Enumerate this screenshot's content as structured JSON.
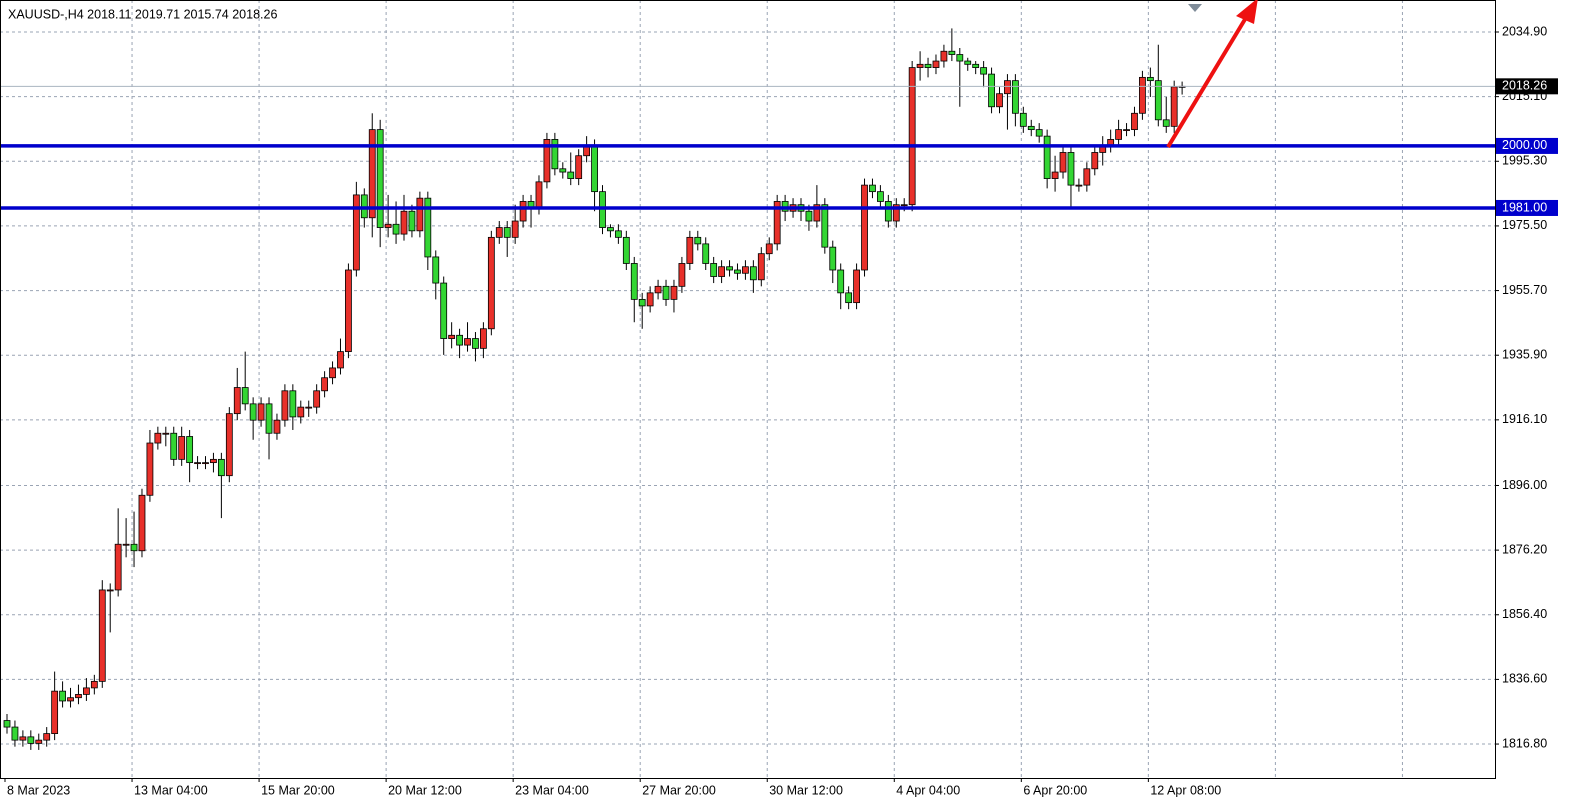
{
  "chart_data": {
    "type": "candlestick",
    "title": "XAUUSD-,H4  2018.11 2019.71 2015.74 2018.26",
    "categories": [
      "8 Mar 2023",
      null,
      null,
      null,
      null,
      null,
      null,
      null,
      null,
      null,
      null,
      null,
      null,
      null,
      null,
      null,
      "13 Mar 04:00",
      null,
      null,
      null,
      null,
      null,
      null,
      null,
      null,
      null,
      null,
      null,
      null,
      null,
      null,
      null,
      "15 Mar 20:00",
      null,
      null,
      null,
      null,
      null,
      null,
      null,
      null,
      null,
      null,
      null,
      null,
      null,
      null,
      null,
      "20 Mar 12:00",
      null,
      null,
      null,
      null,
      null,
      null,
      null,
      null,
      null,
      null,
      null,
      null,
      null,
      null,
      null,
      "23 Mar 04:00",
      null,
      null,
      null,
      null,
      null,
      null,
      null,
      null,
      null,
      null,
      null,
      null,
      null,
      null,
      null,
      "27 Mar 20:00",
      null,
      null,
      null,
      null,
      null,
      null,
      null,
      null,
      null,
      null,
      null,
      null,
      null,
      null,
      null,
      "30 Mar 12:00",
      null,
      null,
      null,
      null,
      null,
      null,
      null,
      null,
      null,
      null,
      null,
      null,
      null,
      null,
      null,
      "4 Apr 04:00",
      null,
      null,
      null,
      null,
      null,
      null,
      null,
      null,
      null,
      null,
      null,
      null,
      null,
      null,
      null,
      "6 Apr 20:00",
      null,
      null,
      null,
      null,
      null,
      null,
      null,
      null,
      null,
      null,
      null,
      null,
      null,
      null,
      null,
      "12 Apr 08:00",
      null,
      null,
      null,
      null
    ],
    "open": [
      1824,
      1822,
      1818,
      1819,
      1817,
      1818,
      1820,
      1833,
      1830,
      1831,
      1832,
      1834,
      1836,
      1864,
      1864,
      1878,
      1878,
      1876,
      1893,
      1909,
      1912,
      1912,
      1904,
      1911,
      1903,
      1903,
      1903,
      1904,
      1899,
      1918,
      1926,
      1921,
      1916,
      1921,
      1912,
      1916,
      1925,
      1917,
      1920,
      1920,
      1925,
      1929,
      1932,
      1937,
      1962,
      1985,
      1978,
      2005,
      1975,
      1976,
      1973,
      1980,
      1974,
      1984,
      1966,
      1958,
      1941,
      1942,
      1939,
      1941,
      1938,
      1944,
      1972,
      1975,
      1972,
      1977,
      1983,
      1981,
      1989,
      2002,
      1993,
      1992,
      1990,
      1997,
      2000,
      1986,
      1975,
      1974,
      1972,
      1964,
      1953,
      1951,
      1955,
      1957,
      1953,
      1957,
      1964,
      1972,
      1970,
      1964,
      1960,
      1963,
      1962,
      1961,
      1963,
      1959,
      1967,
      1970,
      1983,
      1980,
      1982,
      1980,
      1977,
      1982,
      1969,
      1962,
      1955,
      1952,
      1962,
      1988,
      1986,
      1983,
      1977,
      1982,
      1982,
      2024,
      2025,
      2024,
      2026,
      2029,
      2028,
      2026,
      2025,
      2024,
      2022,
      2012,
      2016,
      2020,
      2010,
      2006,
      2005,
      2003,
      1990,
      1992,
      1998,
      1988,
      1988,
      1993,
      1998,
      2000,
      2002,
      2005,
      2005,
      2010,
      2021,
      2020,
      2008,
      2006,
      2018.11
    ],
    "high": [
      1826,
      1824,
      1821,
      1821,
      1820,
      1822,
      1839,
      1836,
      1834,
      1835,
      1837,
      1838,
      1867,
      1866,
      1889,
      1886,
      1888,
      1895,
      1913,
      1914,
      1914,
      1914,
      1914,
      1913,
      1905,
      1905,
      1906,
      1906,
      1920,
      1932,
      1937,
      1923,
      1923,
      1923,
      1918,
      1927,
      1927,
      1922,
      1922,
      1927,
      1931,
      1934,
      1941,
      1964,
      1989,
      1987,
      2010,
      2008,
      1985,
      1983,
      1985,
      1982,
      1986,
      1986,
      1968,
      1960,
      1946,
      1944,
      1946,
      1943,
      1946,
      1974,
      1977,
      1977,
      1982,
      1985,
      1985,
      1991,
      2004,
      2004,
      1995,
      1998,
      1999,
      2003,
      2002,
      1988,
      1976,
      1976,
      1974,
      1966,
      1955,
      1957,
      1959,
      1959,
      1959,
      1966,
      1974,
      1974,
      1972,
      1966,
      1965,
      1965,
      1964,
      1965,
      1965,
      1969,
      1972,
      1985,
      1985,
      1984,
      1984,
      1982,
      1988,
      1984,
      1971,
      1964,
      1957,
      1964,
      1990,
      1990,
      1988,
      1985,
      1984,
      1984,
      2026,
      2029,
      2027,
      2028,
      2031,
      2036,
      2030,
      2027,
      2026,
      2026,
      2024,
      2018,
      2022,
      2022,
      2012,
      2008,
      2007,
      2005,
      1997,
      2000,
      2000,
      1990,
      1995,
      2000,
      2003,
      2005,
      2008,
      2007,
      2012,
      2023,
      2024,
      2031,
      2015,
      2020,
      2019.71
    ],
    "low": [
      1820,
      1816,
      1816,
      1815,
      1815,
      1816,
      1818,
      1828,
      1828,
      1829,
      1830,
      1832,
      1834,
      1851,
      1862,
      1874,
      1871,
      1874,
      1891,
      1907,
      1908,
      1902,
      1902,
      1897,
      1901,
      1901,
      1900,
      1886,
      1897,
      1916,
      1919,
      1910,
      1914,
      1904,
      1910,
      1914,
      1913,
      1915,
      1917,
      1918,
      1923,
      1927,
      1930,
      1935,
      1960,
      1975,
      1972,
      1969,
      1972,
      1970,
      1971,
      1972,
      1972,
      1962,
      1953,
      1936,
      1938,
      1935,
      1937,
      1934,
      1935,
      1942,
      1970,
      1966,
      1970,
      1975,
      1975,
      1979,
      1987,
      1991,
      1990,
      1988,
      1988,
      1995,
      1980,
      1973,
      1972,
      1970,
      1962,
      1946,
      1944,
      1949,
      1953,
      1951,
      1949,
      1955,
      1962,
      1968,
      1962,
      1958,
      1958,
      1960,
      1959,
      1959,
      1955,
      1957,
      1965,
      1968,
      1977,
      1978,
      1977,
      1974,
      1975,
      1967,
      1958,
      1950,
      1950,
      1950,
      1960,
      1984,
      1981,
      1975,
      1975,
      1980,
      1980,
      2020,
      2021,
      2022,
      2024,
      2026,
      2012,
      2023,
      2022,
      2018,
      2010,
      2010,
      2005,
      2006,
      2004,
      2003,
      2001,
      1987,
      1986,
      1990,
      1981,
      1986,
      1986,
      1991,
      1994,
      1998,
      2000,
      2003,
      2003,
      2008,
      2015,
      2006,
      2004,
      2004,
      2015.74
    ],
    "close": [
      1822,
      1818,
      1819,
      1817,
      1818,
      1820,
      1833,
      1830,
      1831,
      1832,
      1834,
      1836,
      1864,
      1864,
      1878,
      1878,
      1876,
      1893,
      1909,
      1912,
      1912,
      1904,
      1911,
      1903,
      1903,
      1903,
      1904,
      1899,
      1918,
      1926,
      1921,
      1916,
      1921,
      1912,
      1916,
      1925,
      1917,
      1920,
      1920,
      1925,
      1929,
      1932,
      1937,
      1962,
      1985,
      1978,
      2005,
      1975,
      1976,
      1973,
      1980,
      1974,
      1984,
      1966,
      1958,
      1941,
      1942,
      1939,
      1941,
      1938,
      1944,
      1972,
      1975,
      1972,
      1977,
      1983,
      1981,
      1989,
      2002,
      1993,
      1992,
      1990,
      1997,
      2000,
      1986,
      1975,
      1974,
      1972,
      1964,
      1953,
      1951,
      1955,
      1957,
      1953,
      1957,
      1964,
      1972,
      1970,
      1964,
      1960,
      1963,
      1962,
      1961,
      1963,
      1959,
      1967,
      1970,
      1983,
      1980,
      1982,
      1980,
      1977,
      1982,
      1969,
      1962,
      1955,
      1952,
      1962,
      1988,
      1986,
      1983,
      1977,
      1982,
      1982,
      2024,
      2025,
      2024,
      2026,
      2029,
      2028,
      2026,
      2025,
      2024,
      2022,
      2012,
      2016,
      2020,
      2010,
      2006,
      2005,
      2003,
      1990,
      1992,
      1998,
      1988,
      1988,
      1993,
      1998,
      2000,
      2002,
      2005,
      2005,
      2010,
      2021,
      2020,
      2008,
      2006,
      2018.11,
      2018.26
    ],
    "up_color": "#e8302a",
    "down_color": "#33d633",
    "grid": true,
    "ylim": [
      1806.4,
      2044.7
    ],
    "yticks": [
      {
        "value": 1816.8,
        "label": "1816.80"
      },
      {
        "value": 1836.6,
        "label": "1836.60"
      },
      {
        "value": 1856.4,
        "label": "1856.40"
      },
      {
        "value": 1876.2,
        "label": "1876.20"
      },
      {
        "value": 1896,
        "label": "1896.00"
      },
      {
        "value": 1916.1,
        "label": "1916.10"
      },
      {
        "value": 1935.9,
        "label": "1935.90"
      },
      {
        "value": 1955.7,
        "label": "1955.70"
      },
      {
        "value": 1975.5,
        "label": "1975.50"
      },
      {
        "value": 1995.3,
        "label": "1995.30"
      },
      {
        "value": 2015.1,
        "label": "2015.10"
      },
      {
        "value": 2034.9,
        "label": "2034.90"
      }
    ],
    "levels": [
      {
        "value": 2000,
        "label": "2000.00"
      },
      {
        "value": 1981,
        "label": "1981.00"
      }
    ],
    "level_color": "#0000cc",
    "last_price": 2018.26
  }
}
